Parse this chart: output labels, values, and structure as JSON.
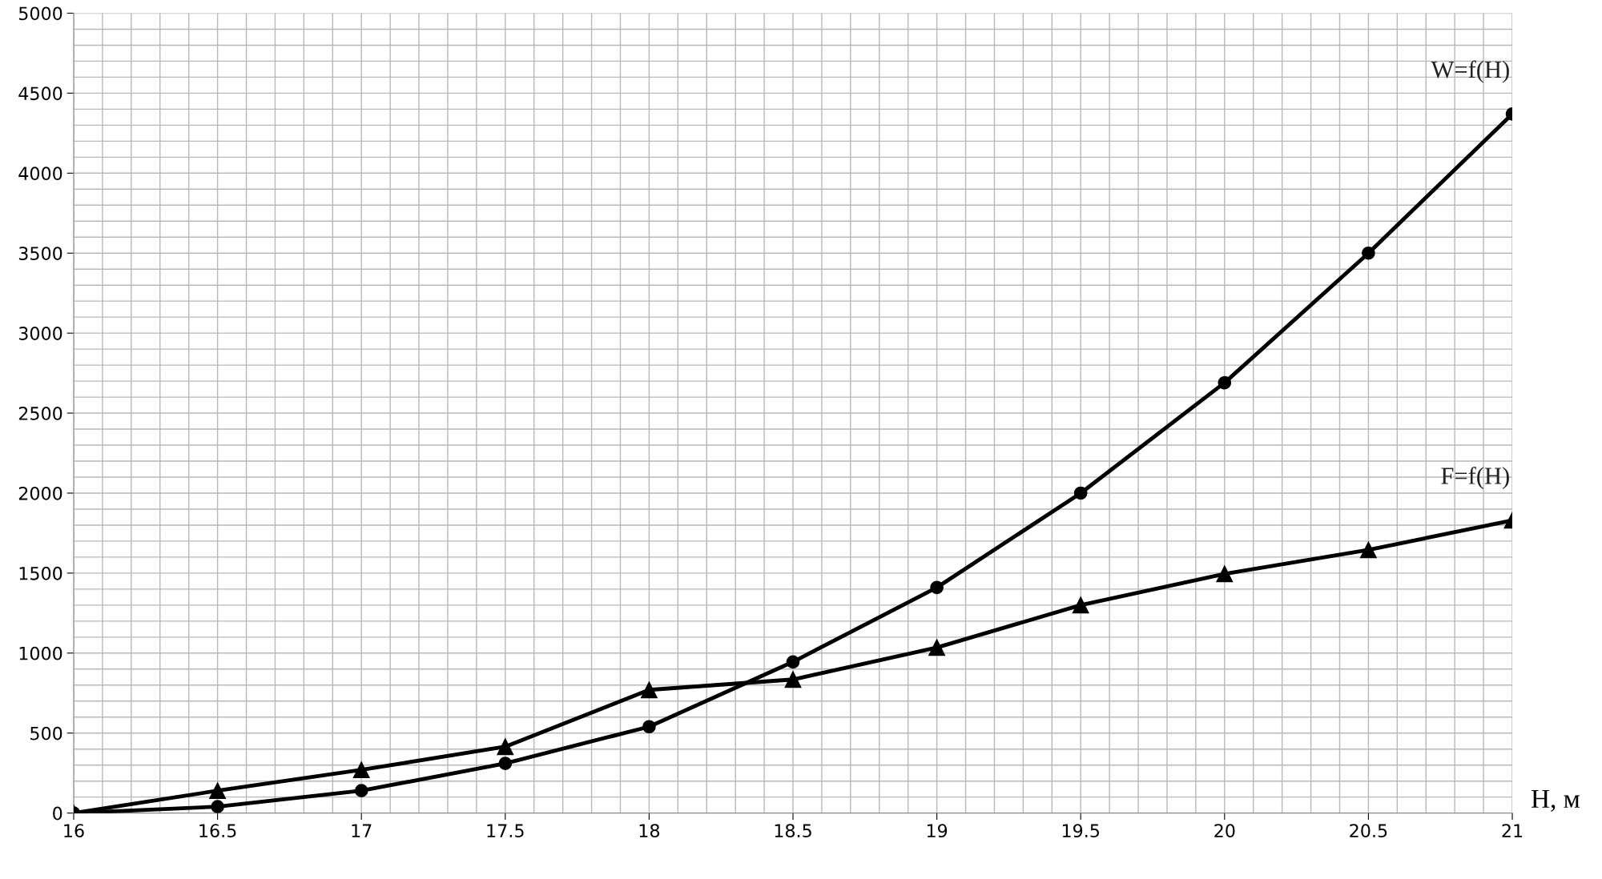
{
  "chart_data": {
    "type": "line",
    "xlabel": "H, м",
    "x": [
      16,
      16.5,
      17,
      17.5,
      18,
      18.5,
      19,
      19.5,
      20,
      20.5,
      21
    ],
    "series": [
      {
        "name": "W=f(H)",
        "color": "#000000",
        "marker": "circle",
        "values": [
          0,
          40,
          140,
          310,
          540,
          945,
          1410,
          2000,
          2690,
          3500,
          4370
        ]
      },
      {
        "name": "F=f(H)",
        "color": "#000000",
        "marker": "triangle",
        "values": [
          0,
          140,
          270,
          415,
          770,
          835,
          1035,
          1300,
          1495,
          1645,
          1830
        ]
      }
    ],
    "xlim": [
      16,
      21
    ],
    "xticks": [
      16,
      16.5,
      17,
      17.5,
      18,
      18.5,
      19,
      19.5,
      20,
      20.5,
      21
    ],
    "ylim": [
      0,
      5000
    ],
    "yticks": [
      0,
      500,
      1000,
      1500,
      2000,
      2500,
      3000,
      3500,
      4000,
      4500,
      5000
    ],
    "grid": true,
    "line_style": "solid",
    "legend": false
  }
}
